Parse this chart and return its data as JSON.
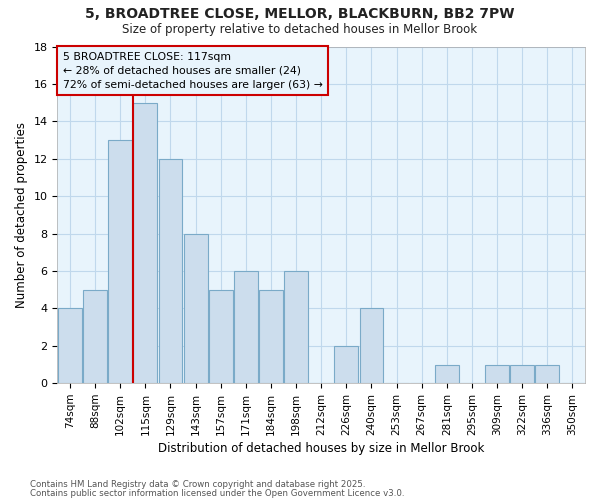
{
  "title1": "5, BROADTREE CLOSE, MELLOR, BLACKBURN, BB2 7PW",
  "title2": "Size of property relative to detached houses in Mellor Brook",
  "xlabel": "Distribution of detached houses by size in Mellor Brook",
  "ylabel": "Number of detached properties",
  "categories": [
    "74sqm",
    "88sqm",
    "102sqm",
    "115sqm",
    "129sqm",
    "143sqm",
    "157sqm",
    "171sqm",
    "184sqm",
    "198sqm",
    "212sqm",
    "226sqm",
    "240sqm",
    "253sqm",
    "267sqm",
    "281sqm",
    "295sqm",
    "309sqm",
    "322sqm",
    "336sqm",
    "350sqm"
  ],
  "values": [
    4,
    5,
    13,
    15,
    12,
    8,
    5,
    6,
    5,
    6,
    0,
    2,
    4,
    0,
    0,
    1,
    0,
    1,
    1,
    1,
    0
  ],
  "bar_color": "#ccdded",
  "bar_edge_color": "#7aaac8",
  "property_line_idx": 3,
  "annotation_lines": [
    "5 BROADTREE CLOSE: 117sqm",
    "← 28% of detached houses are smaller (24)",
    "72% of semi-detached houses are larger (63) →"
  ],
  "vline_color": "#cc0000",
  "ylim": [
    0,
    18
  ],
  "yticks": [
    0,
    2,
    4,
    6,
    8,
    10,
    12,
    14,
    16,
    18
  ],
  "footer1": "Contains HM Land Registry data © Crown copyright and database right 2025.",
  "footer2": "Contains public sector information licensed under the Open Government Licence v3.0.",
  "fig_bg_color": "#ffffff",
  "plot_bg_color": "#e8f4fc",
  "grid_color": "#c0d8ec"
}
